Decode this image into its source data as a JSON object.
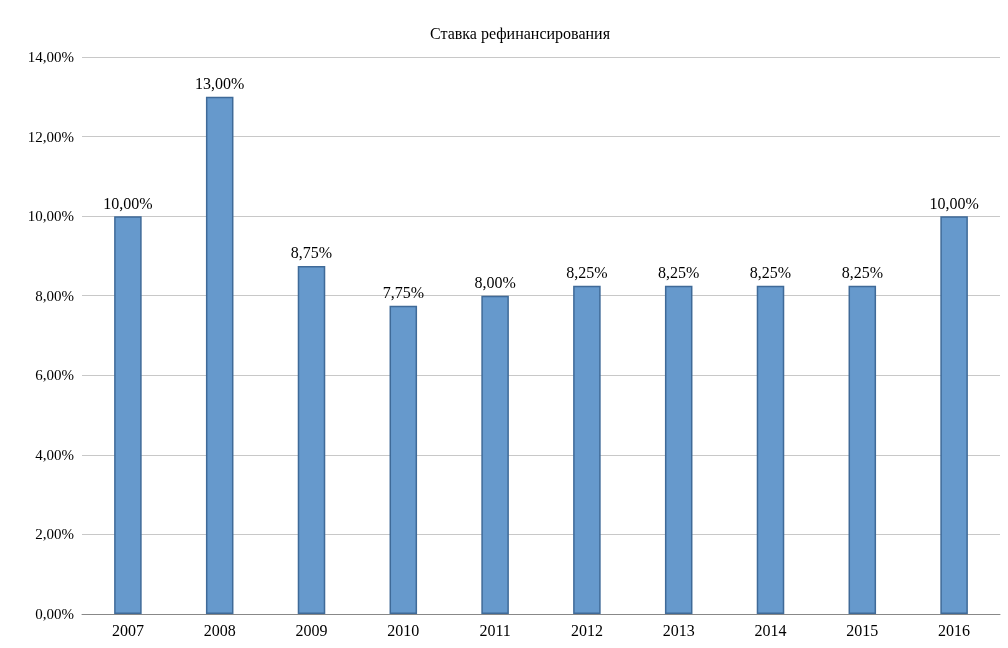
{
  "chart_data": {
    "type": "bar",
    "title": "Ставка рефинансирования",
    "categories": [
      "2007",
      "2008",
      "2009",
      "2010",
      "2011",
      "2012",
      "2013",
      "2014",
      "2015",
      "2016"
    ],
    "values": [
      10,
      13,
      8.75,
      7.75,
      8,
      8.25,
      8.25,
      8.25,
      8.25,
      10
    ],
    "value_labels": [
      "10,00%",
      "13,00%",
      "8,75%",
      "7,75%",
      "8,00%",
      "8,25%",
      "8,25%",
      "8,25%",
      "8,25%",
      "10,00%"
    ],
    "color": "#6699cc",
    "ylim": [
      0,
      14
    ],
    "yticks": [
      {
        "value": 0,
        "label": "0,00%"
      },
      {
        "value": 2,
        "label": "2,00%"
      },
      {
        "value": 4,
        "label": "4,00%"
      },
      {
        "value": 6,
        "label": "6,00%"
      },
      {
        "value": 8,
        "label": "8,00%"
      },
      {
        "value": 10,
        "label": "10,00%"
      },
      {
        "value": 12,
        "label": "12,00%"
      },
      {
        "value": 14,
        "label": "14,00%"
      }
    ],
    "grid": "y"
  }
}
